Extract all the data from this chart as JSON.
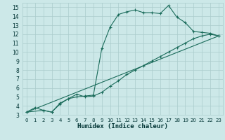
{
  "xlabel": "Humidex (Indice chaleur)",
  "bg_color": "#cce8e8",
  "grid_color": "#aacccc",
  "line_color": "#1a6b5a",
  "xlim": [
    -0.5,
    23.5
  ],
  "ylim": [
    3,
    15.5
  ],
  "xticks": [
    0,
    1,
    2,
    3,
    4,
    5,
    6,
    7,
    8,
    9,
    10,
    11,
    12,
    13,
    14,
    15,
    16,
    17,
    18,
    19,
    20,
    21,
    22,
    23
  ],
  "yticks": [
    3,
    4,
    5,
    6,
    7,
    8,
    9,
    10,
    11,
    12,
    13,
    14,
    15
  ],
  "line1_x": [
    0,
    1,
    2,
    3,
    4,
    5,
    6,
    7,
    8,
    9,
    10,
    11,
    12,
    13,
    14,
    15,
    16,
    17,
    18,
    19,
    20,
    21,
    22,
    23
  ],
  "line1_y": [
    3.3,
    3.8,
    3.5,
    3.3,
    4.3,
    4.8,
    5.0,
    5.1,
    5.2,
    10.4,
    12.8,
    14.2,
    14.5,
    14.7,
    14.4,
    14.4,
    14.3,
    15.2,
    13.9,
    13.3,
    12.3,
    12.2,
    12.1,
    11.8
  ],
  "line2_x": [
    0,
    2,
    3,
    4,
    5,
    6,
    7,
    8,
    9,
    10,
    11,
    12,
    13,
    14,
    15,
    16,
    17,
    18,
    19,
    20,
    21,
    22,
    23
  ],
  "line2_y": [
    3.3,
    3.5,
    3.3,
    4.2,
    4.8,
    5.3,
    5.0,
    5.1,
    5.5,
    6.2,
    6.8,
    7.5,
    8.0,
    8.5,
    9.0,
    9.5,
    10.0,
    10.5,
    11.0,
    11.5,
    11.8,
    12.0,
    11.8
  ],
  "line3_x": [
    0,
    23
  ],
  "line3_y": [
    3.3,
    11.8
  ],
  "xtick_fontsize": 5.0,
  "ytick_fontsize": 5.5,
  "xlabel_fontsize": 6.5
}
